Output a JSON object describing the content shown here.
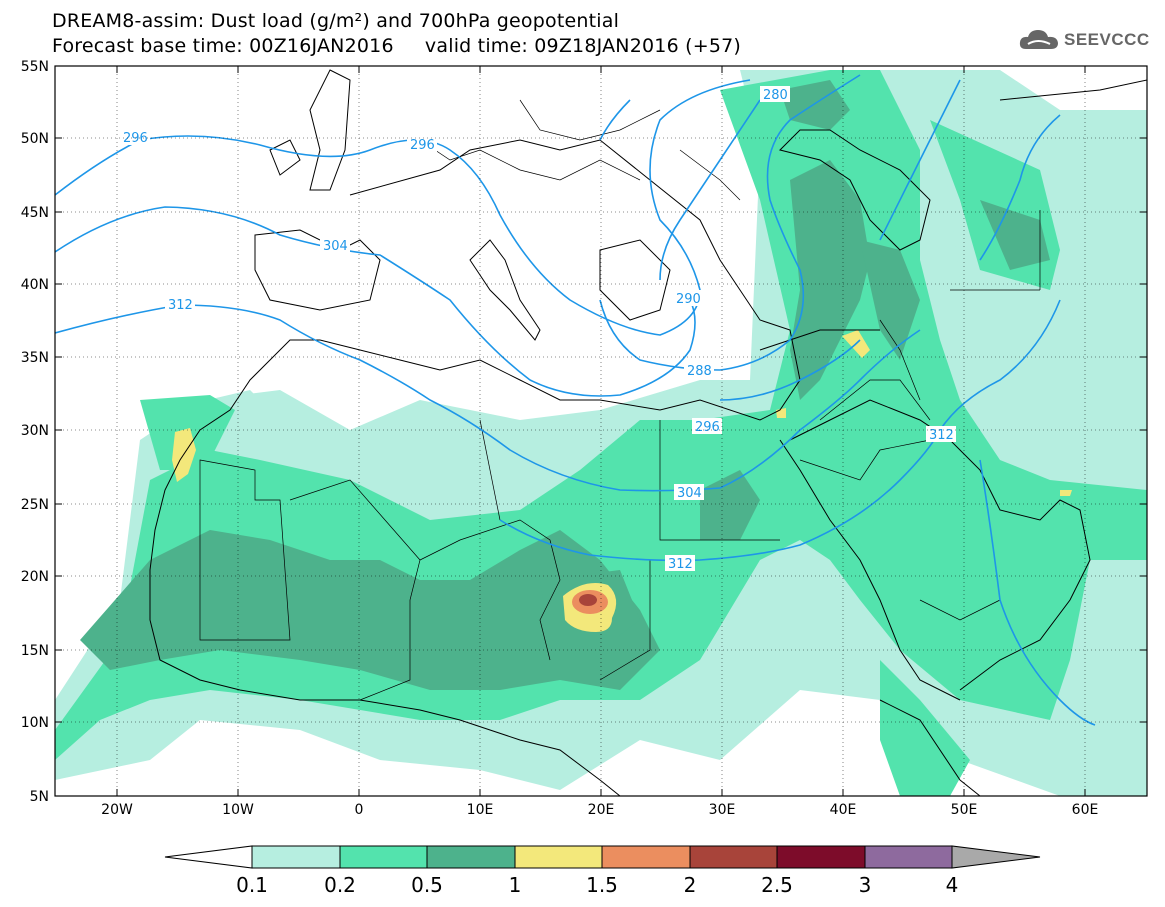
{
  "header": {
    "line1": "DREAM8-assim: Dust load (g/m²) and 700hPa geopotential",
    "line2": "Forecast base time: 00Z16JAN2016     valid time: 09Z18JAN2016 (+57)"
  },
  "logo": {
    "text": "SEEVCCC",
    "icon": "cloud-icon"
  },
  "map": {
    "lat_labels": [
      "55N",
      "50N",
      "45N",
      "40N",
      "35N",
      "30N",
      "25N",
      "20N",
      "15N",
      "10N",
      "5N"
    ],
    "lon_labels": [
      "20W",
      "10W",
      "0",
      "10E",
      "20E",
      "30E",
      "40E",
      "50E",
      "60E"
    ],
    "contour_labels": [
      "296",
      "296",
      "280",
      "304",
      "312",
      "290",
      "288",
      "296",
      "304",
      "312",
      "312"
    ]
  },
  "colorbar": {
    "ticks": [
      "0.1",
      "0.2",
      "0.5",
      "1",
      "1.5",
      "2",
      "2.5",
      "3",
      "4"
    ],
    "colors": [
      "#b6eee0",
      "#53e3ad",
      "#4db28c",
      "#f3e87b",
      "#eb8e5f",
      "#a8443a",
      "#7d0c2a",
      "#8e6a9e",
      "#a9a9a9"
    ]
  },
  "colors": {
    "contour": "#1e96e8",
    "border": "#000000",
    "dust_low": "#b6eee0",
    "dust_mid": "#53e3ad",
    "dust_high": "#4db28c",
    "dust_yellow": "#f3e87b",
    "dust_orange": "#eb8e5f",
    "dust_red": "#a8443a"
  }
}
